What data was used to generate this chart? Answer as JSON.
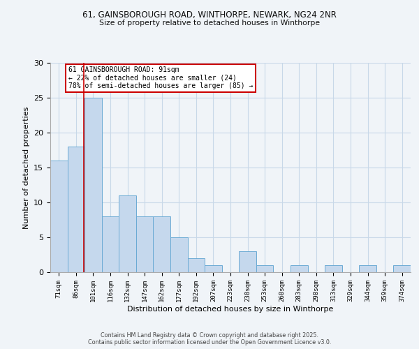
{
  "title_line1": "61, GAINSBOROUGH ROAD, WINTHORPE, NEWARK, NG24 2NR",
  "title_line2": "Size of property relative to detached houses in Winthorpe",
  "xlabel": "Distribution of detached houses by size in Winthorpe",
  "ylabel": "Number of detached properties",
  "categories": [
    "71sqm",
    "86sqm",
    "101sqm",
    "116sqm",
    "132sqm",
    "147sqm",
    "162sqm",
    "177sqm",
    "192sqm",
    "207sqm",
    "223sqm",
    "238sqm",
    "253sqm",
    "268sqm",
    "283sqm",
    "298sqm",
    "313sqm",
    "329sqm",
    "344sqm",
    "359sqm",
    "374sqm"
  ],
  "values": [
    16,
    18,
    25,
    8,
    11,
    8,
    8,
    5,
    2,
    1,
    0,
    3,
    1,
    0,
    1,
    0,
    1,
    0,
    1,
    0,
    1
  ],
  "bar_color": "#c5d8ed",
  "bar_edge_color": "#6aaad4",
  "red_line_x": 1.47,
  "annotation_text": "61 GAINSBOROUGH ROAD: 91sqm\n← 22% of detached houses are smaller (24)\n78% of semi-detached houses are larger (85) →",
  "annotation_box_color": "#ffffff",
  "annotation_border_color": "#cc0000",
  "ylim": [
    0,
    30
  ],
  "grid_color": "#c8d8e8",
  "background_color": "#f0f4f8",
  "footer_line1": "Contains HM Land Registry data © Crown copyright and database right 2025.",
  "footer_line2": "Contains public sector information licensed under the Open Government Licence v3.0."
}
